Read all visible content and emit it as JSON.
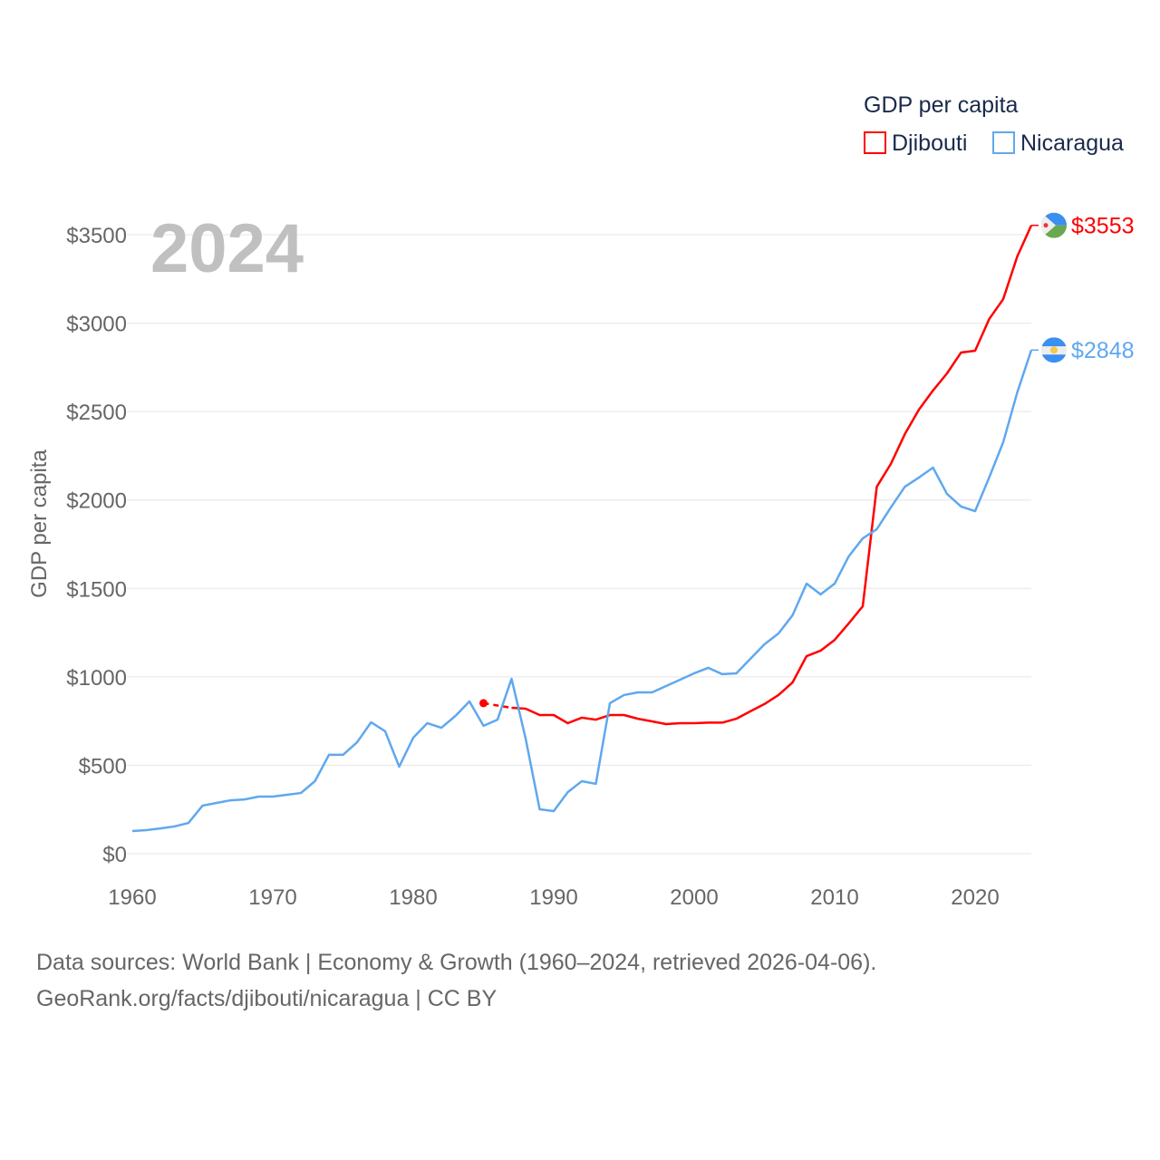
{
  "chart_data": {
    "type": "line",
    "title": "",
    "year_label": "2024",
    "xlabel": "",
    "ylabel": "GDP per capita",
    "xlim": [
      1960,
      2024
    ],
    "ylim": [
      0,
      3500
    ],
    "x_ticks": [
      1960,
      1970,
      1980,
      1990,
      2000,
      2010,
      2020
    ],
    "y_ticks": [
      0,
      500,
      1000,
      1500,
      2000,
      2500,
      3000,
      3500
    ],
    "y_tick_labels": [
      "$0",
      "$500",
      "$1000",
      "$1500",
      "$2000",
      "$2500",
      "$3000",
      "$3500"
    ],
    "grid": true,
    "legend": {
      "title": "GDP per capita",
      "placement": "top-right"
    },
    "series": [
      {
        "name": "Djibouti",
        "color": "#ff0000",
        "end_label": "$3553",
        "flag": "djibouti-flag",
        "isolated_start": {
          "x": 1985,
          "y": 851
        },
        "x": [
          1987,
          1988,
          1989,
          1990,
          1991,
          1992,
          1993,
          1994,
          1995,
          1996,
          1997,
          1998,
          1999,
          2000,
          2001,
          2002,
          2003,
          2004,
          2005,
          2006,
          2007,
          2008,
          2009,
          2010,
          2011,
          2012,
          2013,
          2014,
          2015,
          2016,
          2017,
          2018,
          2019,
          2020,
          2021,
          2022,
          2023,
          2024
        ],
        "values": [
          825,
          820,
          784,
          784,
          738,
          769,
          758,
          784,
          784,
          763,
          748,
          733,
          738,
          738,
          741,
          741,
          763,
          805,
          846,
          897,
          968,
          1117,
          1148,
          1209,
          1302,
          1399,
          2075,
          2204,
          2373,
          2511,
          2619,
          2716,
          2834,
          2844,
          3023,
          3136,
          3377,
          3553
        ]
      },
      {
        "name": "Nicaragua",
        "color": "#5fa8ef",
        "end_label": "$2848",
        "flag": "nicaragua-flag",
        "x": [
          1960,
          1961,
          1962,
          1963,
          1964,
          1965,
          1966,
          1967,
          1968,
          1969,
          1970,
          1971,
          1972,
          1973,
          1974,
          1975,
          1976,
          1977,
          1978,
          1979,
          1980,
          1981,
          1982,
          1983,
          1984,
          1985,
          1986,
          1987,
          1988,
          1989,
          1990,
          1991,
          1992,
          1993,
          1994,
          1995,
          1996,
          1997,
          1998,
          1999,
          2000,
          2001,
          2002,
          2003,
          2004,
          2005,
          2006,
          2007,
          2008,
          2009,
          2010,
          2011,
          2012,
          2013,
          2014,
          2015,
          2016,
          2017,
          2018,
          2019,
          2020,
          2021,
          2022,
          2023,
          2024
        ],
        "values": [
          128,
          133,
          143,
          154,
          174,
          272,
          287,
          302,
          307,
          323,
          323,
          333,
          343,
          410,
          559,
          559,
          630,
          743,
          692,
          492,
          656,
          738,
          712,
          779,
          861,
          723,
          758,
          989,
          651,
          251,
          241,
          348,
          410,
          395,
          851,
          897,
          912,
          912,
          948,
          984,
          1020,
          1051,
          1015,
          1020,
          1102,
          1184,
          1245,
          1348,
          1527,
          1466,
          1527,
          1681,
          1783,
          1835,
          1958,
          2075,
          2127,
          2183,
          2034,
          1963,
          1937,
          2127,
          2327,
          2608,
          2848
        ]
      }
    ]
  },
  "footer": {
    "line1": "Data sources: World Bank | Economy & Growth (1960–2024, retrieved 2026-04-06).",
    "line2": "GeoRank.org/facts/djibouti/nicaragua | CC BY"
  }
}
